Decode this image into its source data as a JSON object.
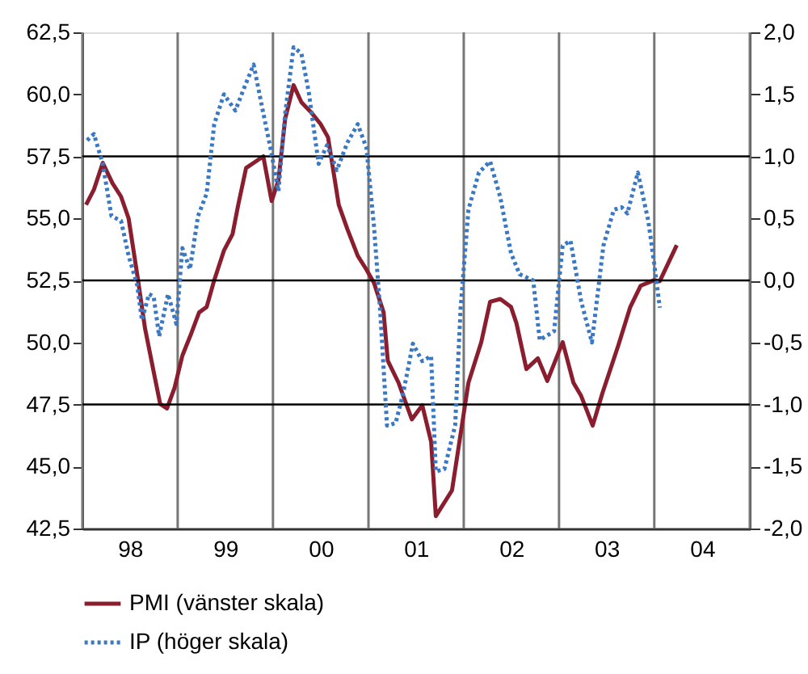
{
  "chart_data": {
    "type": "line",
    "xlim": [
      "1998-01-01",
      "2005-01-01"
    ],
    "xticks": [
      {
        "value": "1998-01-01",
        "label": null
      },
      {
        "value": "1998-07-02",
        "label": "98"
      },
      {
        "value": "1999-01-01",
        "label": null
      },
      {
        "value": "1999-07-02",
        "label": "99"
      },
      {
        "value": "2000-01-01",
        "label": null
      },
      {
        "value": "2000-07-02",
        "label": "00"
      },
      {
        "value": "2001-01-01",
        "label": null
      },
      {
        "value": "2001-07-02",
        "label": "01"
      },
      {
        "value": "2002-01-01",
        "label": null
      },
      {
        "value": "2002-07-02",
        "label": "02"
      },
      {
        "value": "2003-01-01",
        "label": null
      },
      {
        "value": "2003-07-02",
        "label": "03"
      },
      {
        "value": "2004-01-01",
        "label": null
      },
      {
        "value": "2004-07-02",
        "label": "04"
      },
      {
        "value": "2005-01-01",
        "label": null
      }
    ],
    "ylim": [
      42.5,
      62.5
    ],
    "yticks": [
      {
        "value": 42.5,
        "label": "42,5"
      },
      {
        "value": 45,
        "label": "45,0"
      },
      {
        "value": 47.5,
        "label": "47,5"
      },
      {
        "value": 50,
        "label": "50,0"
      },
      {
        "value": 52.5,
        "label": "52,5"
      },
      {
        "value": 55,
        "label": "55,0"
      },
      {
        "value": 57.5,
        "label": "57,5"
      },
      {
        "value": 60,
        "label": "60,0"
      },
      {
        "value": 62.5,
        "label": "62,5"
      }
    ],
    "y2lim": [
      -2.0,
      2.0
    ],
    "y2ticks": [
      {
        "value": -2.0,
        "label": "-2,0"
      },
      {
        "value": -1.5,
        "label": "-1,5"
      },
      {
        "value": -1.0,
        "label": "-1,0"
      },
      {
        "value": -0.5,
        "label": "-0,5"
      },
      {
        "value": 0,
        "label": "0,0"
      },
      {
        "value": 0.5,
        "label": "0,5"
      },
      {
        "value": 1.0,
        "label": "1,0"
      },
      {
        "value": 1.5,
        "label": "1,5"
      },
      {
        "value": 2.0,
        "label": "2,0"
      }
    ],
    "grid": "x",
    "ref_lines": [
      {
        "axis": "y2",
        "value": -1.0,
        "color": "#000000"
      },
      {
        "axis": "y2",
        "value": 0,
        "color": "#000000"
      },
      {
        "axis": "y2",
        "value": 1.0,
        "color": "#000000"
      }
    ],
    "legend": "bottom",
    "series": [
      {
        "name": "PMI (vänster skala)",
        "color": "#8b1e2e",
        "line_style": "solid",
        "x": [
          "1998-01-15",
          "1998-02-14",
          "1998-03-20",
          "1998-04-26",
          "1998-05-29",
          "1998-06-27",
          "1998-07-30",
          "1998-08-29",
          "1998-10-01",
          "1998-10-26",
          "1998-11-21",
          "1998-12-20",
          "1999-01-19",
          "1999-02-21",
          "1999-03-24",
          "1999-04-22",
          "1999-05-21",
          "1999-06-27",
          "1999-07-30",
          "1999-08-21",
          "1999-09-20",
          "1999-10-26",
          "1999-11-25",
          "1999-12-27",
          "2000-01-22",
          "2000-02-17",
          "2000-03-20",
          "2000-04-19",
          "2000-05-29",
          "2000-07-01",
          "2000-07-30",
          "2000-09-09",
          "2000-10-12",
          "2000-11-21",
          "2000-12-24",
          "2001-01-22",
          "2001-02-28",
          "2001-03-16",
          "2001-04-26",
          "2001-06-16",
          "2001-07-26",
          "2001-08-29",
          "2001-09-16",
          "2001-11-17",
          "2002-01-19",
          "2002-03-09",
          "2002-04-12",
          "2002-05-21",
          "2002-07-01",
          "2002-07-22",
          "2002-08-29",
          "2002-10-12",
          "2002-11-17",
          "2003-01-15",
          "2003-02-25",
          "2003-03-27",
          "2003-05-10",
          "2003-06-16",
          "2003-08-17",
          "2003-10-01",
          "2003-11-10",
          "2004-01-01",
          "2004-01-22",
          "2004-03-27"
        ],
        "values": [
          55.55,
          56.16,
          57.24,
          56.42,
          55.88,
          55.0,
          52.73,
          50.56,
          48.82,
          47.52,
          47.34,
          48.17,
          49.47,
          50.34,
          51.21,
          51.43,
          52.51,
          53.7,
          54.36,
          55.55,
          57.03,
          57.29,
          57.5,
          55.7,
          56.53,
          59.03,
          60.37,
          59.68,
          59.24,
          58.81,
          58.27,
          55.55,
          54.57,
          53.49,
          52.94,
          52.4,
          51.21,
          49.26,
          48.38,
          46.9,
          47.47,
          46.0,
          43.0,
          44.04,
          48.38,
          50.01,
          51.64,
          51.75,
          51.43,
          50.77,
          48.93,
          49.36,
          48.45,
          50.01,
          48.38,
          47.84,
          46.65,
          47.95,
          49.91,
          51.43,
          52.29,
          52.51,
          52.47,
          53.92
        ]
      },
      {
        "name": "IP (höger skala)",
        "color": "#3a78c4",
        "line_style": "dotted",
        "axis": "y2",
        "x": [
          "1998-01-19",
          "1998-02-14",
          "1998-03-20",
          "1998-04-22",
          "1998-05-29",
          "1998-06-27",
          "1998-07-30",
          "1998-08-17",
          "1998-09-13",
          "1998-10-01",
          "1998-10-22",
          "1998-11-25",
          "1998-12-27",
          "1999-01-19",
          "1999-02-17",
          "1999-03-20",
          "1999-04-22",
          "1999-05-21",
          "1999-06-27",
          "1999-08-10",
          "1999-09-16",
          "1999-10-19",
          "1999-11-21",
          "1999-12-24",
          "2000-01-22",
          "2000-02-17",
          "2000-03-20",
          "2000-04-19",
          "2000-05-17",
          "2000-06-24",
          "2000-07-26",
          "2000-09-02",
          "2000-10-12",
          "2000-11-21",
          "2000-12-24",
          "2001-01-22",
          "2001-02-14",
          "2001-03-13",
          "2001-04-15",
          "2001-05-14",
          "2001-06-20",
          "2001-07-26",
          "2001-08-29",
          "2001-09-16",
          "2001-10-19",
          "2001-11-29",
          "2001-12-20",
          "2002-01-19",
          "2002-02-28",
          "2002-04-12",
          "2002-05-21",
          "2002-07-01",
          "2002-08-03",
          "2002-09-24",
          "2002-10-19",
          "2002-12-13",
          "2003-01-15",
          "2003-02-14",
          "2003-03-27",
          "2003-05-07",
          "2003-06-20",
          "2003-07-30",
          "2003-08-29",
          "2003-09-20",
          "2003-10-30",
          "2003-12-09",
          "2004-01-01",
          "2004-01-22"
        ],
        "values": [
          1.13,
          1.18,
          0.94,
          0.52,
          0.48,
          0.2,
          -0.04,
          -0.32,
          -0.11,
          -0.13,
          -0.45,
          -0.11,
          -0.35,
          0.26,
          0.09,
          0.52,
          0.7,
          1.26,
          1.5,
          1.37,
          1.57,
          1.74,
          1.39,
          1.05,
          0.72,
          1.35,
          1.88,
          1.83,
          1.52,
          0.94,
          1.09,
          0.89,
          1.11,
          1.26,
          1.07,
          0.44,
          -0.22,
          -1.17,
          -1.15,
          -0.91,
          -0.51,
          -0.65,
          -0.61,
          -1.54,
          -1.52,
          -1.17,
          -0.22,
          0.57,
          0.87,
          0.96,
          0.67,
          0.22,
          0.05,
          0.0,
          -0.48,
          -0.41,
          0.28,
          0.32,
          -0.17,
          -0.5,
          0.28,
          0.57,
          0.59,
          0.54,
          0.87,
          0.48,
          0.13,
          -0.22
        ]
      }
    ]
  }
}
